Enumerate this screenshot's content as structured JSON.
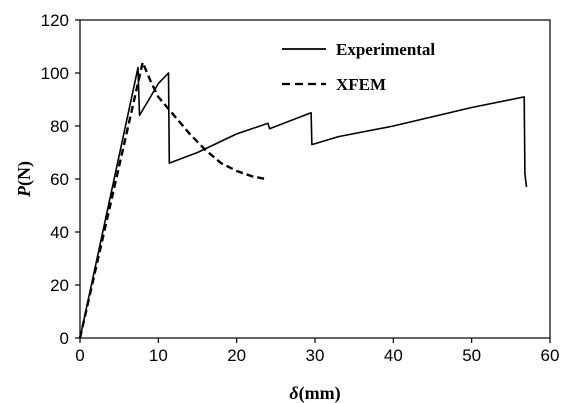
{
  "chart_data": {
    "type": "line",
    "xlabel_symbol": "δ",
    "xlabel_unit": "(mm)",
    "ylabel_symbol": "P",
    "ylabel_unit": "(N)",
    "xlim": [
      0,
      60
    ],
    "ylim": [
      0,
      120
    ],
    "xticks": [
      "0",
      "10",
      "20",
      "30",
      "40",
      "50",
      "60"
    ],
    "yticks": [
      "0",
      "20",
      "40",
      "60",
      "80",
      "100",
      "120"
    ],
    "legend_position": "top-right",
    "series": [
      {
        "name": "Experimental",
        "style": "solid",
        "points": [
          [
            0,
            0
          ],
          [
            7.4,
            102
          ],
          [
            7.6,
            84
          ],
          [
            9,
            91
          ],
          [
            10,
            96
          ],
          [
            11.3,
            100
          ],
          [
            11.4,
            66
          ],
          [
            15,
            70
          ],
          [
            20,
            77
          ],
          [
            24,
            81
          ],
          [
            24.2,
            79
          ],
          [
            29.5,
            85
          ],
          [
            29.6,
            73
          ],
          [
            33,
            76
          ],
          [
            40,
            80
          ],
          [
            50,
            87
          ],
          [
            56.7,
            91
          ],
          [
            56.8,
            62
          ],
          [
            57,
            57
          ]
        ]
      },
      {
        "name": "XFEM",
        "style": "dashed",
        "points": [
          [
            0,
            0
          ],
          [
            8,
            104
          ],
          [
            9,
            97
          ],
          [
            10,
            91
          ],
          [
            12,
            84
          ],
          [
            14,
            77
          ],
          [
            16,
            71
          ],
          [
            18,
            66
          ],
          [
            20,
            63
          ],
          [
            22,
            61
          ],
          [
            23.7,
            60
          ]
        ]
      }
    ]
  }
}
